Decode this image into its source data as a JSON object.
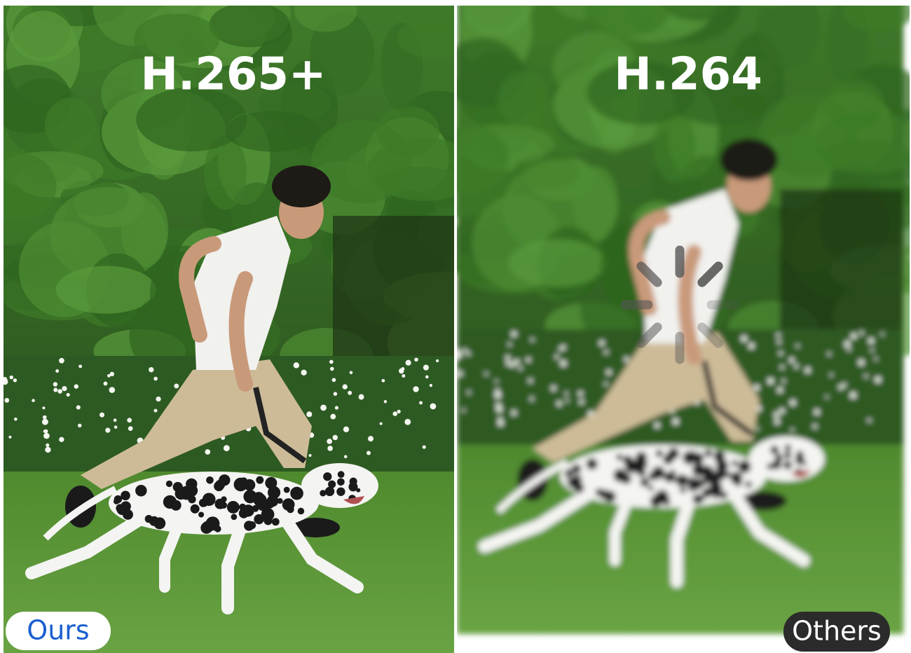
{
  "panels": [
    {
      "title": "H.265+",
      "badge": "Ours"
    },
    {
      "title": "H.264",
      "badge": "Others"
    }
  ]
}
